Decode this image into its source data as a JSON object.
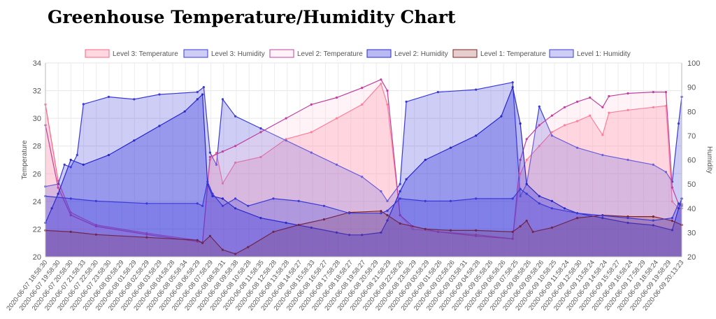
{
  "page": {
    "title": "Greenhouse Temperature/Humidity Chart"
  },
  "chart_data": {
    "type": "area",
    "title": "",
    "xlabel": "",
    "ylabel": "Temperature",
    "y2label": "Humidity",
    "ylim": [
      20,
      34
    ],
    "y2lim": [
      20,
      100
    ],
    "yticks": [
      20,
      22,
      24,
      26,
      28,
      30,
      32,
      34
    ],
    "y2ticks": [
      20,
      30,
      40,
      50,
      60,
      70,
      80,
      90,
      100
    ],
    "grid": true,
    "legend_position": "top",
    "x_tick_labels": [
      "2020-06-07 18:58:30",
      "2020-06-07 19:58:30",
      "2020-06-07 20:58:30",
      "2020-06-07 21:58:33",
      "2020-06-07 22:58:30",
      "2020-06-07 23:58:30",
      "2020-06-08 00:58:29",
      "2020-06-08 01:58:29",
      "2020-06-08 02:58:29",
      "2020-06-08 03:58:29",
      "2020-06-08 04:58:28",
      "2020-06-08 05:58:34",
      "2020-06-08 06:58:29",
      "2020-06-08 07:58:29",
      "2020-06-08 08:58:31",
      "2020-06-08 09:58:38",
      "2020-06-08 10:58:28",
      "2020-06-08 11:58:35",
      "2020-06-08 12:58:28",
      "2020-06-08 13:58:28",
      "2020-06-08 14:58:27",
      "2020-06-08 15:58:33",
      "2020-06-08 16:58:27",
      "2020-06-08 17:58:28",
      "2020-06-08 18:58:27",
      "2020-06-08 19:58:27",
      "2020-06-08 20:58:29",
      "2020-06-08 21:58:29",
      "2020-06-08 22:58:26",
      "2020-06-08 23:58:29",
      "2020-06-09 00:58:29",
      "2020-06-09 01:58:26",
      "2020-06-09 02:58:26",
      "2020-06-09 03:58:31",
      "2020-06-09 04:58:28",
      "2020-06-09 05:58:26",
      "2020-06-09 06:58:26",
      "2020-06-09 07:58:25",
      "2020-06-09 08:58:26",
      "2020-06-09 09:58:26",
      "2020-06-09 10:58:25",
      "2020-06-09 11:58:24",
      "2020-06-09 12:58:30",
      "2020-06-09 13:58:24",
      "2020-06-09 14:58:24",
      "2020-06-09 15:58:27",
      "2020-06-09 16:58:24",
      "2020-06-09 17:58:29",
      "2020-06-09 18:58:24",
      "2020-06-09 19:58:29",
      "2020-06-09 20:13:23"
    ],
    "x_range_hours": [
      0,
      50.25
    ],
    "series": [
      {
        "name": "Level 3: Temperature",
        "axis": "left",
        "fill": "rgba(255,99,132,0.25)",
        "stroke": "#ff6384",
        "points": [
          [
            0,
            31
          ],
          [
            1,
            25.5
          ],
          [
            2,
            23.2
          ],
          [
            4,
            22.3
          ],
          [
            8,
            21.7
          ],
          [
            12,
            21.2
          ],
          [
            12.4,
            21.0
          ],
          [
            13,
            27
          ],
          [
            13.5,
            27.5
          ],
          [
            14,
            25.3
          ],
          [
            15,
            26.8
          ],
          [
            17,
            27.2
          ],
          [
            19,
            28.5
          ],
          [
            21,
            29
          ],
          [
            23,
            30
          ],
          [
            25,
            31
          ],
          [
            26.5,
            32.5
          ],
          [
            27,
            31
          ],
          [
            28,
            23
          ],
          [
            29,
            22
          ],
          [
            31,
            21.8
          ],
          [
            34,
            21.6
          ],
          [
            36.9,
            21.3
          ],
          [
            37.5,
            26
          ],
          [
            38,
            27
          ],
          [
            39,
            28
          ],
          [
            40,
            29
          ],
          [
            41,
            29.5
          ],
          [
            42,
            29.8
          ],
          [
            43,
            30.2
          ],
          [
            44,
            28.8
          ],
          [
            44.5,
            30.4
          ],
          [
            46,
            30.6
          ],
          [
            48,
            30.8
          ],
          [
            49,
            30.9
          ],
          [
            49.5,
            24
          ],
          [
            50,
            23.5
          ],
          [
            50.25,
            23.5
          ]
        ]
      },
      {
        "name": "Level 3: Humidity",
        "axis": "right",
        "fill": "rgba(54,54,220,0.25)",
        "stroke": "#3a3ad8",
        "points": [
          [
            0,
            49
          ],
          [
            1,
            50
          ],
          [
            1.5,
            58
          ],
          [
            2,
            57
          ],
          [
            2.5,
            62
          ],
          [
            3,
            83
          ],
          [
            5,
            86
          ],
          [
            7,
            85
          ],
          [
            9,
            87
          ],
          [
            12,
            88
          ],
          [
            12.5,
            90
          ],
          [
            13,
            63
          ],
          [
            13.5,
            58
          ],
          [
            14,
            85
          ],
          [
            15,
            78
          ],
          [
            17,
            73
          ],
          [
            19,
            68
          ],
          [
            21,
            63
          ],
          [
            23,
            58
          ],
          [
            25,
            53
          ],
          [
            26.5,
            47
          ],
          [
            27,
            43
          ],
          [
            28,
            50
          ],
          [
            28.5,
            84
          ],
          [
            31,
            88
          ],
          [
            34,
            89
          ],
          [
            36.9,
            92
          ],
          [
            37.5,
            45
          ],
          [
            38,
            50
          ],
          [
            39,
            82
          ],
          [
            40,
            70
          ],
          [
            42,
            65
          ],
          [
            44,
            62
          ],
          [
            46,
            60
          ],
          [
            48,
            58
          ],
          [
            49,
            55
          ],
          [
            49.5,
            51
          ],
          [
            50,
            75
          ],
          [
            50.25,
            86
          ]
        ]
      },
      {
        "name": "Level 2: Temperature",
        "axis": "left",
        "fill": "rgba(255,206,222,0.25)",
        "stroke": "#c040a0",
        "points": [
          [
            0,
            29.5
          ],
          [
            1,
            25
          ],
          [
            2,
            23
          ],
          [
            4,
            22.2
          ],
          [
            8,
            21.6
          ],
          [
            12,
            21.1
          ],
          [
            12.4,
            21.0
          ],
          [
            13,
            27.2
          ],
          [
            14,
            27.6
          ],
          [
            15,
            28
          ],
          [
            17,
            29
          ],
          [
            19,
            30
          ],
          [
            21,
            31
          ],
          [
            23,
            31.5
          ],
          [
            25,
            32.2
          ],
          [
            26.5,
            32.8
          ],
          [
            27,
            32
          ],
          [
            28,
            23
          ],
          [
            29,
            22.2
          ],
          [
            31,
            21.8
          ],
          [
            34,
            21.5
          ],
          [
            36.9,
            21.3
          ],
          [
            37.5,
            27
          ],
          [
            38,
            28.5
          ],
          [
            39,
            29.5
          ],
          [
            40,
            30.2
          ],
          [
            41,
            30.8
          ],
          [
            42,
            31.2
          ],
          [
            43,
            31.5
          ],
          [
            44,
            30.8
          ],
          [
            44.5,
            31.6
          ],
          [
            46,
            31.8
          ],
          [
            48,
            31.9
          ],
          [
            49,
            31.9
          ],
          [
            49.5,
            25
          ],
          [
            50,
            23.8
          ],
          [
            50.25,
            23.8
          ]
        ]
      },
      {
        "name": "Level 2: Humidity",
        "axis": "right",
        "fill": "rgba(54,54,220,0.35)",
        "stroke": "#2828c8",
        "points": [
          [
            0,
            34
          ],
          [
            0.5,
            40
          ],
          [
            1,
            46
          ],
          [
            2,
            60
          ],
          [
            3,
            58
          ],
          [
            5,
            62
          ],
          [
            7,
            68
          ],
          [
            9,
            74
          ],
          [
            11,
            80
          ],
          [
            12,
            85
          ],
          [
            12.4,
            87
          ],
          [
            12.8,
            50
          ],
          [
            13.2,
            45
          ],
          [
            14,
            44
          ],
          [
            15,
            40
          ],
          [
            17,
            36
          ],
          [
            19,
            34
          ],
          [
            21,
            32
          ],
          [
            23,
            30
          ],
          [
            24,
            29
          ],
          [
            25,
            29
          ],
          [
            26.5,
            30
          ],
          [
            27,
            35
          ],
          [
            28,
            47
          ],
          [
            28.5,
            52
          ],
          [
            30,
            60
          ],
          [
            32,
            65
          ],
          [
            34,
            70
          ],
          [
            36,
            78
          ],
          [
            36.9,
            90
          ],
          [
            37.5,
            75
          ],
          [
            38,
            50
          ],
          [
            39,
            45
          ],
          [
            40,
            43
          ],
          [
            41,
            40
          ],
          [
            42,
            38
          ],
          [
            44,
            36
          ],
          [
            46,
            34
          ],
          [
            48,
            33
          ],
          [
            49.5,
            31
          ],
          [
            50,
            40
          ],
          [
            50.25,
            44
          ]
        ]
      },
      {
        "name": "Level 1: Temperature",
        "axis": "left",
        "fill": "rgba(160,60,60,0.25)",
        "stroke": "#802020",
        "points": [
          [
            0,
            21.9
          ],
          [
            2,
            21.8
          ],
          [
            4,
            21.6
          ],
          [
            8,
            21.4
          ],
          [
            12,
            21.2
          ],
          [
            12.4,
            21.0
          ],
          [
            13,
            21.5
          ],
          [
            14,
            20.5
          ],
          [
            15,
            20.2
          ],
          [
            16,
            20.7
          ],
          [
            18,
            21.8
          ],
          [
            20,
            22.3
          ],
          [
            22,
            22.7
          ],
          [
            24,
            23.2
          ],
          [
            26.5,
            23.3
          ],
          [
            27,
            23.0
          ],
          [
            28,
            22.4
          ],
          [
            30,
            22.0
          ],
          [
            32,
            21.9
          ],
          [
            34,
            21.9
          ],
          [
            36.9,
            21.8
          ],
          [
            37.5,
            22.2
          ],
          [
            38,
            22.6
          ],
          [
            38.5,
            21.8
          ],
          [
            40,
            22.1
          ],
          [
            42,
            22.8
          ],
          [
            44,
            23.0
          ],
          [
            46,
            22.9
          ],
          [
            48,
            22.9
          ],
          [
            49.5,
            22.6
          ],
          [
            50.25,
            22.3
          ]
        ]
      },
      {
        "name": "Level 1: Humidity",
        "axis": "right",
        "fill": "rgba(54,54,220,0.25)",
        "stroke": "#3a3ad8",
        "points": [
          [
            0,
            45
          ],
          [
            2,
            44
          ],
          [
            4,
            43
          ],
          [
            8,
            42
          ],
          [
            12,
            42
          ],
          [
            12.4,
            41
          ],
          [
            12.8,
            51
          ],
          [
            13.2,
            46
          ],
          [
            14,
            41
          ],
          [
            15,
            44
          ],
          [
            16,
            41
          ],
          [
            18,
            44
          ],
          [
            20,
            43
          ],
          [
            22,
            41
          ],
          [
            24,
            38
          ],
          [
            26.5,
            38
          ],
          [
            27,
            39
          ],
          [
            28,
            44
          ],
          [
            30,
            43
          ],
          [
            32,
            43
          ],
          [
            34,
            44
          ],
          [
            36.9,
            44
          ],
          [
            37.5,
            48
          ],
          [
            38,
            46
          ],
          [
            39,
            42
          ],
          [
            40,
            40
          ],
          [
            42,
            38
          ],
          [
            44,
            37
          ],
          [
            46,
            36
          ],
          [
            48,
            35
          ],
          [
            49.5,
            36
          ],
          [
            50,
            42
          ],
          [
            50.25,
            41
          ]
        ]
      }
    ]
  }
}
